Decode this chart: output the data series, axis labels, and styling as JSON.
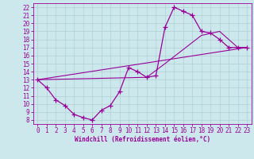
{
  "title": "",
  "xlabel": "Windchill (Refroidissement éolien,°C)",
  "ylabel": "",
  "xlim": [
    -0.5,
    23.5
  ],
  "ylim": [
    7.5,
    22.5
  ],
  "xticks": [
    0,
    1,
    2,
    3,
    4,
    5,
    6,
    7,
    8,
    9,
    10,
    11,
    12,
    13,
    14,
    15,
    16,
    17,
    18,
    19,
    20,
    21,
    22,
    23
  ],
  "yticks": [
    8,
    9,
    10,
    11,
    12,
    13,
    14,
    15,
    16,
    17,
    18,
    19,
    20,
    21,
    22
  ],
  "line_color": "#990099",
  "bg_color": "#cce8ec",
  "grid_color": "#aacccc",
  "series": [
    [
      0,
      13
    ],
    [
      1,
      12
    ],
    [
      2,
      10.5
    ],
    [
      3,
      9.8
    ],
    [
      4,
      8.7
    ],
    [
      5,
      8.3
    ],
    [
      6,
      8.0
    ],
    [
      7,
      9.2
    ],
    [
      8,
      9.8
    ],
    [
      9,
      11.5
    ],
    [
      10,
      14.5
    ],
    [
      11,
      14.0
    ],
    [
      12,
      13.3
    ],
    [
      13,
      13.5
    ],
    [
      14,
      19.5
    ],
    [
      15,
      22.0
    ],
    [
      16,
      21.5
    ],
    [
      17,
      21.0
    ],
    [
      18,
      19.0
    ],
    [
      19,
      18.8
    ],
    [
      20,
      18.0
    ],
    [
      21,
      17.0
    ],
    [
      22,
      17.0
    ],
    [
      23,
      17.0
    ]
  ],
  "line2": [
    [
      0,
      13
    ],
    [
      23,
      17.0
    ]
  ],
  "line3": [
    [
      0,
      13
    ],
    [
      12,
      13.3
    ],
    [
      14,
      15.0
    ],
    [
      18,
      18.5
    ],
    [
      20,
      19.0
    ],
    [
      22,
      17.0
    ],
    [
      23,
      17.0
    ]
  ],
  "tick_fontsize": 5.5,
  "xlabel_fontsize": 5.5
}
